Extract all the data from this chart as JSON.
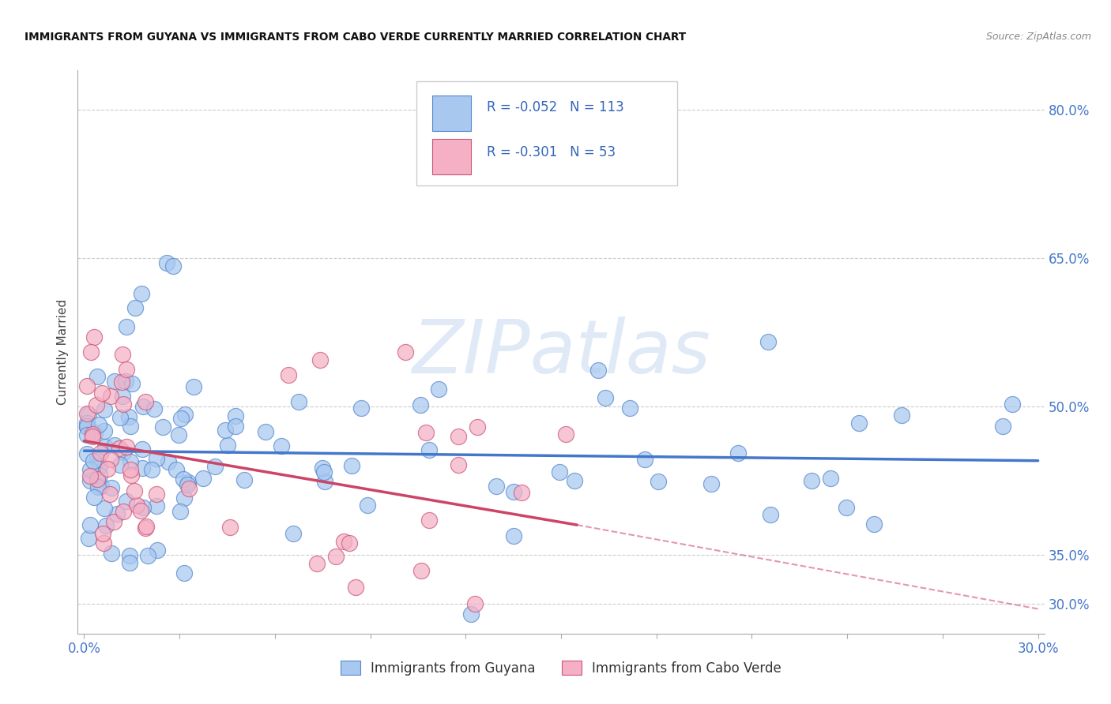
{
  "title": "IMMIGRANTS FROM GUYANA VS IMMIGRANTS FROM CABO VERDE CURRENTLY MARRIED CORRELATION CHART",
  "source": "Source: ZipAtlas.com",
  "ylabel": "Currently Married",
  "xlim": [
    -0.002,
    0.302
  ],
  "ylim": [
    0.27,
    0.84
  ],
  "ytick_values": [
    0.3,
    0.35,
    0.5,
    0.65,
    0.8
  ],
  "ytick_labels": [
    "30.0%",
    "35.0%",
    "50.0%",
    "65.0%",
    "80.0%"
  ],
  "xtick_values": [
    0.0,
    0.03,
    0.06,
    0.09,
    0.12,
    0.15,
    0.18,
    0.21,
    0.24,
    0.27,
    0.3
  ],
  "xtick_labels": [
    "0.0%",
    "",
    "",
    "",
    "",
    "",
    "",
    "",
    "",
    "",
    "30.0%"
  ],
  "R_guyana": "-0.052",
  "N_guyana": "113",
  "R_cabo": "-0.301",
  "N_cabo": "53",
  "color_guyana": "#a8c8f0",
  "color_cabo": "#f5b0c5",
  "edge_guyana": "#5588cc",
  "edge_cabo": "#cc5577",
  "line_guyana": "#4477cc",
  "line_cabo": "#cc4466",
  "tick_color": "#4477cc",
  "title_color": "#111111",
  "source_color": "#888888",
  "legend_label_guyana": "Immigrants from Guyana",
  "legend_label_cabo": "Immigrants from Cabo Verde",
  "watermark_text": "ZIPatlas",
  "watermark_color": "#c8d8f0",
  "grid_color": "#cccccc",
  "spine_color": "#aaaaaa",
  "trend_line_guyana_x0": 0.0,
  "trend_line_guyana_y0": 0.455,
  "trend_line_guyana_x1": 0.3,
  "trend_line_guyana_y1": 0.445,
  "trend_line_cabo_x0": 0.0,
  "trend_line_cabo_y0": 0.465,
  "trend_line_cabo_x1": 0.155,
  "trend_line_cabo_y1": 0.38,
  "trend_line_cabo_dash_x0": 0.155,
  "trend_line_cabo_dash_y0": 0.38,
  "trend_line_cabo_dash_x1": 0.3,
  "trend_line_cabo_dash_y1": 0.295
}
